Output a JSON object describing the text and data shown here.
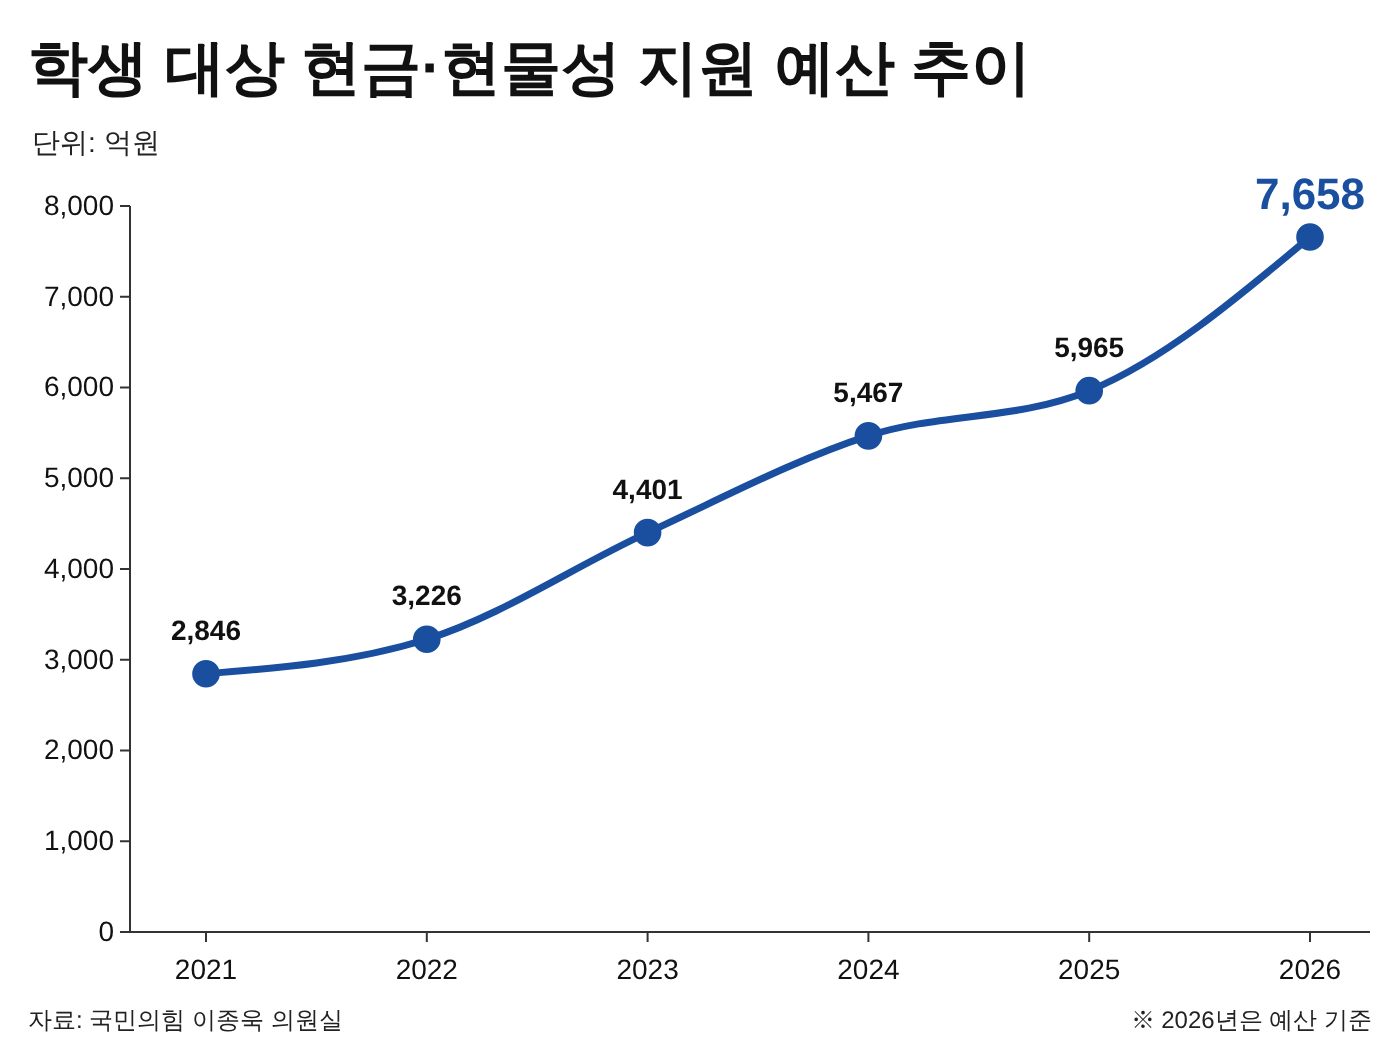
{
  "chart_data": {
    "type": "line",
    "title": "학생 대상 현금·현물성 지원 예산 추이",
    "subtitle": "단위: 억원",
    "categories": [
      "2021",
      "2022",
      "2023",
      "2024",
      "2025",
      "2026"
    ],
    "series": [
      {
        "color": "#1a4fa0",
        "values": [
          2846,
          3226,
          4401,
          5467,
          5965,
          7658
        ],
        "value_labels": [
          "2,846",
          "3,226",
          "4,401",
          "5,467",
          "5,965",
          "7,658"
        ]
      }
    ],
    "ylim": [
      0,
      8000
    ],
    "yticks": [
      {
        "value": 0,
        "label": "0"
      },
      {
        "value": 1000,
        "label": "1,000"
      },
      {
        "value": 2000,
        "label": "2,000"
      },
      {
        "value": 3000,
        "label": "3,000"
      },
      {
        "value": 4000,
        "label": "4,000"
      },
      {
        "value": 5000,
        "label": "5,000"
      },
      {
        "value": 6000,
        "label": "6,000"
      },
      {
        "value": 7000,
        "label": "7,000"
      },
      {
        "value": 8000,
        "label": "8,000"
      }
    ],
    "grid": false,
    "marker": "circle",
    "line_style": "solid",
    "annotations": [
      "자료: 국민의힘 이종욱 의원실",
      "※ 2026년은 예산 기준"
    ]
  }
}
